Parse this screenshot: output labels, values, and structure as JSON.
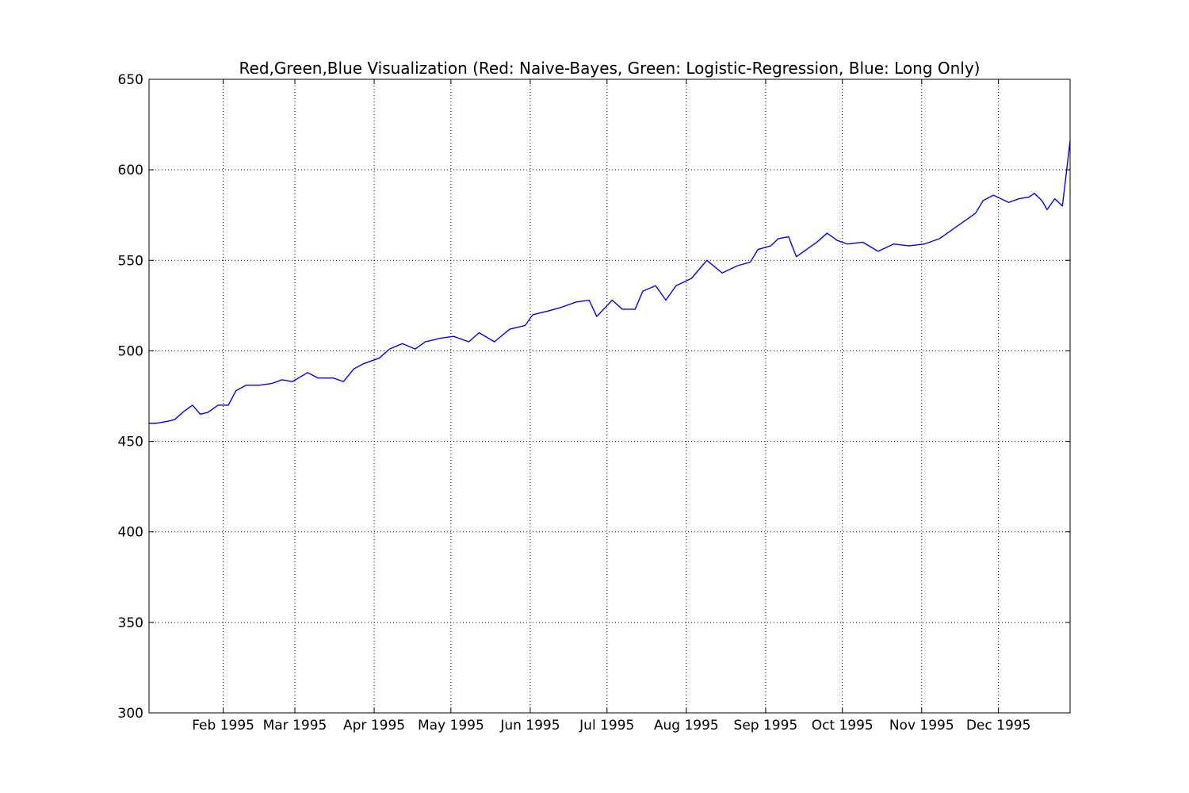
{
  "chart_data": {
    "type": "line",
    "title": "Red,Green,Blue Visualization (Red: Naive-Bayes, Green: Logistic-Regression, Blue: Long Only)",
    "xlabel": "",
    "ylabel": "",
    "xlim": [
      "1995-01-03",
      "1995-12-29"
    ],
    "ylim": [
      300,
      650
    ],
    "grid": true,
    "x_ticks": [
      "1995-02-01",
      "1995-03-01",
      "1995-04-01",
      "1995-05-01",
      "1995-06-01",
      "1995-07-01",
      "1995-08-01",
      "1995-09-01",
      "1995-10-01",
      "1995-11-01",
      "1995-12-01"
    ],
    "x_tick_labels": [
      "Feb 1995",
      "Mar 1995",
      "Apr 1995",
      "May 1995",
      "Jun 1995",
      "Jul 1995",
      "Aug 1995",
      "Sep 1995",
      "Oct 1995",
      "Nov 1995",
      "Dec 1995"
    ],
    "y_ticks": [
      300,
      350,
      400,
      450,
      500,
      550,
      600,
      650
    ],
    "series": [
      {
        "color": "#0000ff",
        "points": [
          [
            "1995-01-03",
            460
          ],
          [
            "1995-01-06",
            460
          ],
          [
            "1995-01-10",
            461
          ],
          [
            "1995-01-13",
            462
          ],
          [
            "1995-01-17",
            467
          ],
          [
            "1995-01-20",
            470
          ],
          [
            "1995-01-23",
            465
          ],
          [
            "1995-01-26",
            466
          ],
          [
            "1995-01-30",
            470
          ],
          [
            "1995-02-03",
            470
          ],
          [
            "1995-02-06",
            478
          ],
          [
            "1995-02-10",
            481
          ],
          [
            "1995-02-15",
            481
          ],
          [
            "1995-02-20",
            482
          ],
          [
            "1995-02-24",
            484
          ],
          [
            "1995-02-28",
            483
          ],
          [
            "1995-03-06",
            488
          ],
          [
            "1995-03-10",
            485
          ],
          [
            "1995-03-16",
            485
          ],
          [
            "1995-03-20",
            483
          ],
          [
            "1995-03-24",
            490
          ],
          [
            "1995-03-28",
            493
          ],
          [
            "1995-04-03",
            496
          ],
          [
            "1995-04-07",
            501
          ],
          [
            "1995-04-12",
            504
          ],
          [
            "1995-04-17",
            501
          ],
          [
            "1995-04-21",
            505
          ],
          [
            "1995-04-27",
            507
          ],
          [
            "1995-05-02",
            508
          ],
          [
            "1995-05-08",
            505
          ],
          [
            "1995-05-12",
            510
          ],
          [
            "1995-05-18",
            505
          ],
          [
            "1995-05-24",
            512
          ],
          [
            "1995-05-30",
            514
          ],
          [
            "1995-06-02",
            520
          ],
          [
            "1995-06-08",
            522
          ],
          [
            "1995-06-13",
            524
          ],
          [
            "1995-06-19",
            527
          ],
          [
            "1995-06-24",
            528
          ],
          [
            "1995-06-27",
            519
          ],
          [
            "1995-07-03",
            528
          ],
          [
            "1995-07-07",
            523
          ],
          [
            "1995-07-12",
            523
          ],
          [
            "1995-07-15",
            533
          ],
          [
            "1995-07-20",
            536
          ],
          [
            "1995-07-24",
            528
          ],
          [
            "1995-07-28",
            536
          ],
          [
            "1995-08-03",
            540
          ],
          [
            "1995-08-09",
            550
          ],
          [
            "1995-08-15",
            543
          ],
          [
            "1995-08-21",
            547
          ],
          [
            "1995-08-26",
            549
          ],
          [
            "1995-08-29",
            556
          ],
          [
            "1995-09-03",
            558
          ],
          [
            "1995-09-06",
            562
          ],
          [
            "1995-09-10",
            563
          ],
          [
            "1995-09-13",
            552
          ],
          [
            "1995-09-17",
            556
          ],
          [
            "1995-09-21",
            560
          ],
          [
            "1995-09-25",
            565
          ],
          [
            "1995-09-29",
            561
          ],
          [
            "1995-10-03",
            559
          ],
          [
            "1995-10-09",
            560
          ],
          [
            "1995-10-15",
            555
          ],
          [
            "1995-10-21",
            559
          ],
          [
            "1995-10-27",
            558
          ],
          [
            "1995-11-02",
            559
          ],
          [
            "1995-11-08",
            562
          ],
          [
            "1995-11-14",
            568
          ],
          [
            "1995-11-18",
            572
          ],
          [
            "1995-11-22",
            576
          ],
          [
            "1995-11-25",
            583
          ],
          [
            "1995-11-29",
            586
          ],
          [
            "1995-12-05",
            582
          ],
          [
            "1995-12-09",
            584
          ],
          [
            "1995-12-13",
            585
          ],
          [
            "1995-12-15",
            587
          ],
          [
            "1995-12-18",
            583
          ],
          [
            "1995-12-20",
            578
          ],
          [
            "1995-12-23",
            584
          ],
          [
            "1995-12-26",
            580
          ],
          [
            "1995-12-29",
            616
          ]
        ]
      }
    ]
  }
}
